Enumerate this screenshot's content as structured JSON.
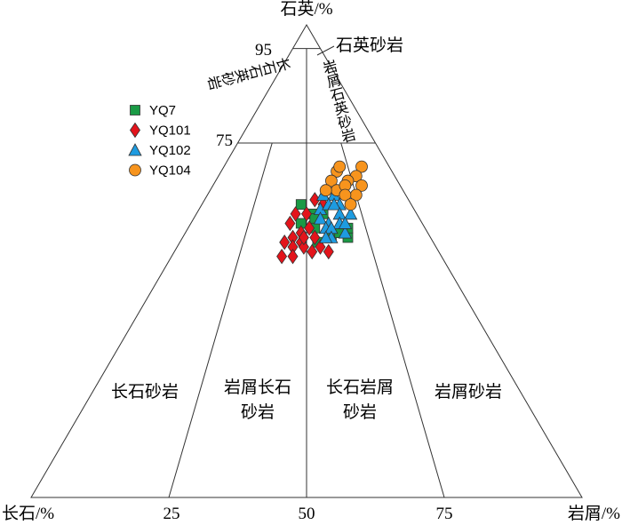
{
  "chart_data": {
    "type": "scatter",
    "subtype": "ternary",
    "axes": {
      "top": "石英/%",
      "left": "长石/%",
      "right": "岩屑/%"
    },
    "base_ticks": [
      "25",
      "50",
      "75"
    ],
    "quartz_ticks": [
      "95",
      "75"
    ],
    "fields": {
      "quartz_sandstone": "石英砂岩",
      "feldspathic_quartz_sandstone": "长石石英砂岩",
      "lithic_quartz_sandstone": "岩屑石英砂岩",
      "arkose": [
        "长石砂岩"
      ],
      "lithic_arkose": [
        "岩屑长石",
        "砂岩"
      ],
      "feldspathic_litharenite": [
        "长石岩屑",
        "砂岩"
      ],
      "litharenite": [
        "岩屑砂岩"
      ]
    },
    "legend_position": "top-left",
    "series": [
      {
        "name": "YQ7",
        "marker": "square",
        "color": "#1a9a45",
        "points": [
          [
            62,
            20,
            18
          ],
          [
            60,
            19,
            21
          ],
          [
            58,
            22,
            20
          ],
          [
            60,
            17,
            23
          ],
          [
            59,
            19,
            22
          ],
          [
            57,
            20,
            23
          ],
          [
            55,
            18,
            27
          ],
          [
            55,
            15,
            30
          ],
          [
            57,
            14,
            29
          ],
          [
            54,
            21,
            25
          ],
          [
            56,
            16,
            28
          ]
        ]
      },
      {
        "name": "YQ101",
        "marker": "diamond",
        "color": "#e3141b",
        "points": [
          [
            63,
            17,
            20
          ],
          [
            60,
            22,
            18
          ],
          [
            60,
            20,
            20
          ],
          [
            58,
            24,
            18
          ],
          [
            56,
            23,
            21
          ],
          [
            57,
            21,
            22
          ],
          [
            55,
            25,
            20
          ],
          [
            54,
            27,
            19
          ],
          [
            54,
            24,
            22
          ],
          [
            53,
            26,
            21
          ],
          [
            53,
            24,
            23
          ],
          [
            51,
            29,
            20
          ],
          [
            51,
            27,
            22
          ],
          [
            52,
            23,
            25
          ],
          [
            52,
            20,
            28
          ],
          [
            62,
            16,
            22
          ],
          [
            55,
            21,
            24
          ],
          [
            55,
            23,
            22
          ],
          [
            53,
            21,
            26
          ]
        ]
      },
      {
        "name": "YQ102",
        "marker": "triangle",
        "color": "#1e9be0",
        "points": [
          [
            64,
            15,
            21
          ],
          [
            64,
            13,
            23
          ],
          [
            62,
            13,
            25
          ],
          [
            61,
            17,
            22
          ],
          [
            62,
            15,
            23
          ],
          [
            62,
            14,
            24
          ],
          [
            60,
            12,
            28
          ],
          [
            60,
            14,
            26
          ],
          [
            58,
            17,
            25
          ],
          [
            59,
            18,
            23
          ],
          [
            58,
            15,
            27
          ],
          [
            57,
            18,
            25
          ],
          [
            57,
            17,
            26
          ],
          [
            56,
            15,
            29
          ],
          [
            55,
            18,
            27
          ],
          [
            55,
            19,
            26
          ],
          [
            58,
            14,
            28
          ]
        ]
      },
      {
        "name": "YQ104",
        "marker": "circle",
        "color": "#f7941d",
        "points": [
          [
            70,
            5,
            25
          ],
          [
            69,
            10,
            21
          ],
          [
            68,
            7,
            25
          ],
          [
            67,
            9,
            24
          ],
          [
            67,
            12,
            21
          ],
          [
            65,
            12,
            23
          ],
          [
            66,
            10,
            24
          ],
          [
            66,
            7,
            27
          ],
          [
            64,
            9,
            27
          ],
          [
            64,
            11,
            25
          ],
          [
            65,
            14,
            21
          ],
          [
            62,
            11,
            27
          ],
          [
            70,
            9,
            21
          ]
        ]
      }
    ],
    "columns": [
      "石英",
      "长石",
      "岩屑"
    ]
  }
}
